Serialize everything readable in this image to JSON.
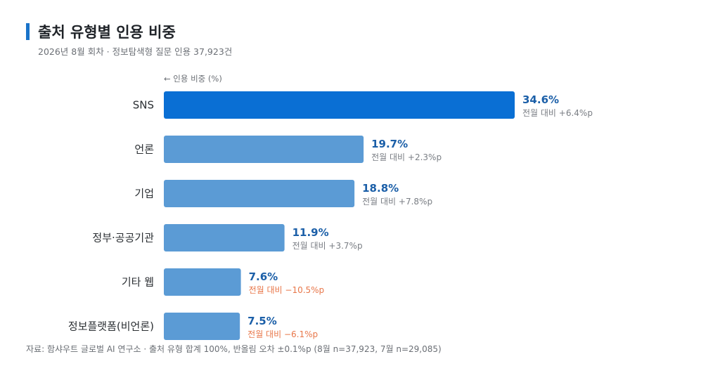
{
  "header": {
    "title": "출처 유형별 인용 비중",
    "subtitle": "2026년 8월 회차 · 정보탐색형 질문 인용 37,923건",
    "axis_note": "← 인용 비중 (%)"
  },
  "footnote": "자료: 함샤우트 글로벌 AI 연구소 · 출처 유형 합계 100%, 반올림 오차 ±0.1%p (8월 n=37,923, 7월 n=29,085)",
  "colors": {
    "accent_bar": "#1a73c9",
    "highlight_bar": "#0a6fd4",
    "bar": "#5b9bd5",
    "value_text": "#1b5fa8",
    "delta_positive": "#7a7e84",
    "delta_negative": "#e8774a"
  },
  "chart_data": {
    "type": "bar",
    "orientation": "horizontal",
    "categories": [
      "SNS",
      "언론",
      "기업",
      "정부·공공기관",
      "기타 웹",
      "정보플랫폼(비언론)"
    ],
    "values": [
      34.6,
      19.7,
      18.8,
      11.9,
      7.6,
      7.5
    ],
    "value_labels": [
      "34.6%",
      "19.7%",
      "18.8%",
      "11.9%",
      "7.6%",
      "7.5%"
    ],
    "deltas": [
      6.4,
      2.3,
      7.8,
      3.7,
      -10.5,
      -6.1
    ],
    "delta_labels": [
      "전월 대비 +6.4%p",
      "전월 대비 +2.3%p",
      "전월 대비 +7.8%p",
      "전월 대비 +3.7%p",
      "전월 대비 −10.5%p",
      "전월 대비 −6.1%p"
    ],
    "highlight_index": 0,
    "xlim": [
      0,
      34.6
    ],
    "grid": false,
    "legend": "none"
  }
}
